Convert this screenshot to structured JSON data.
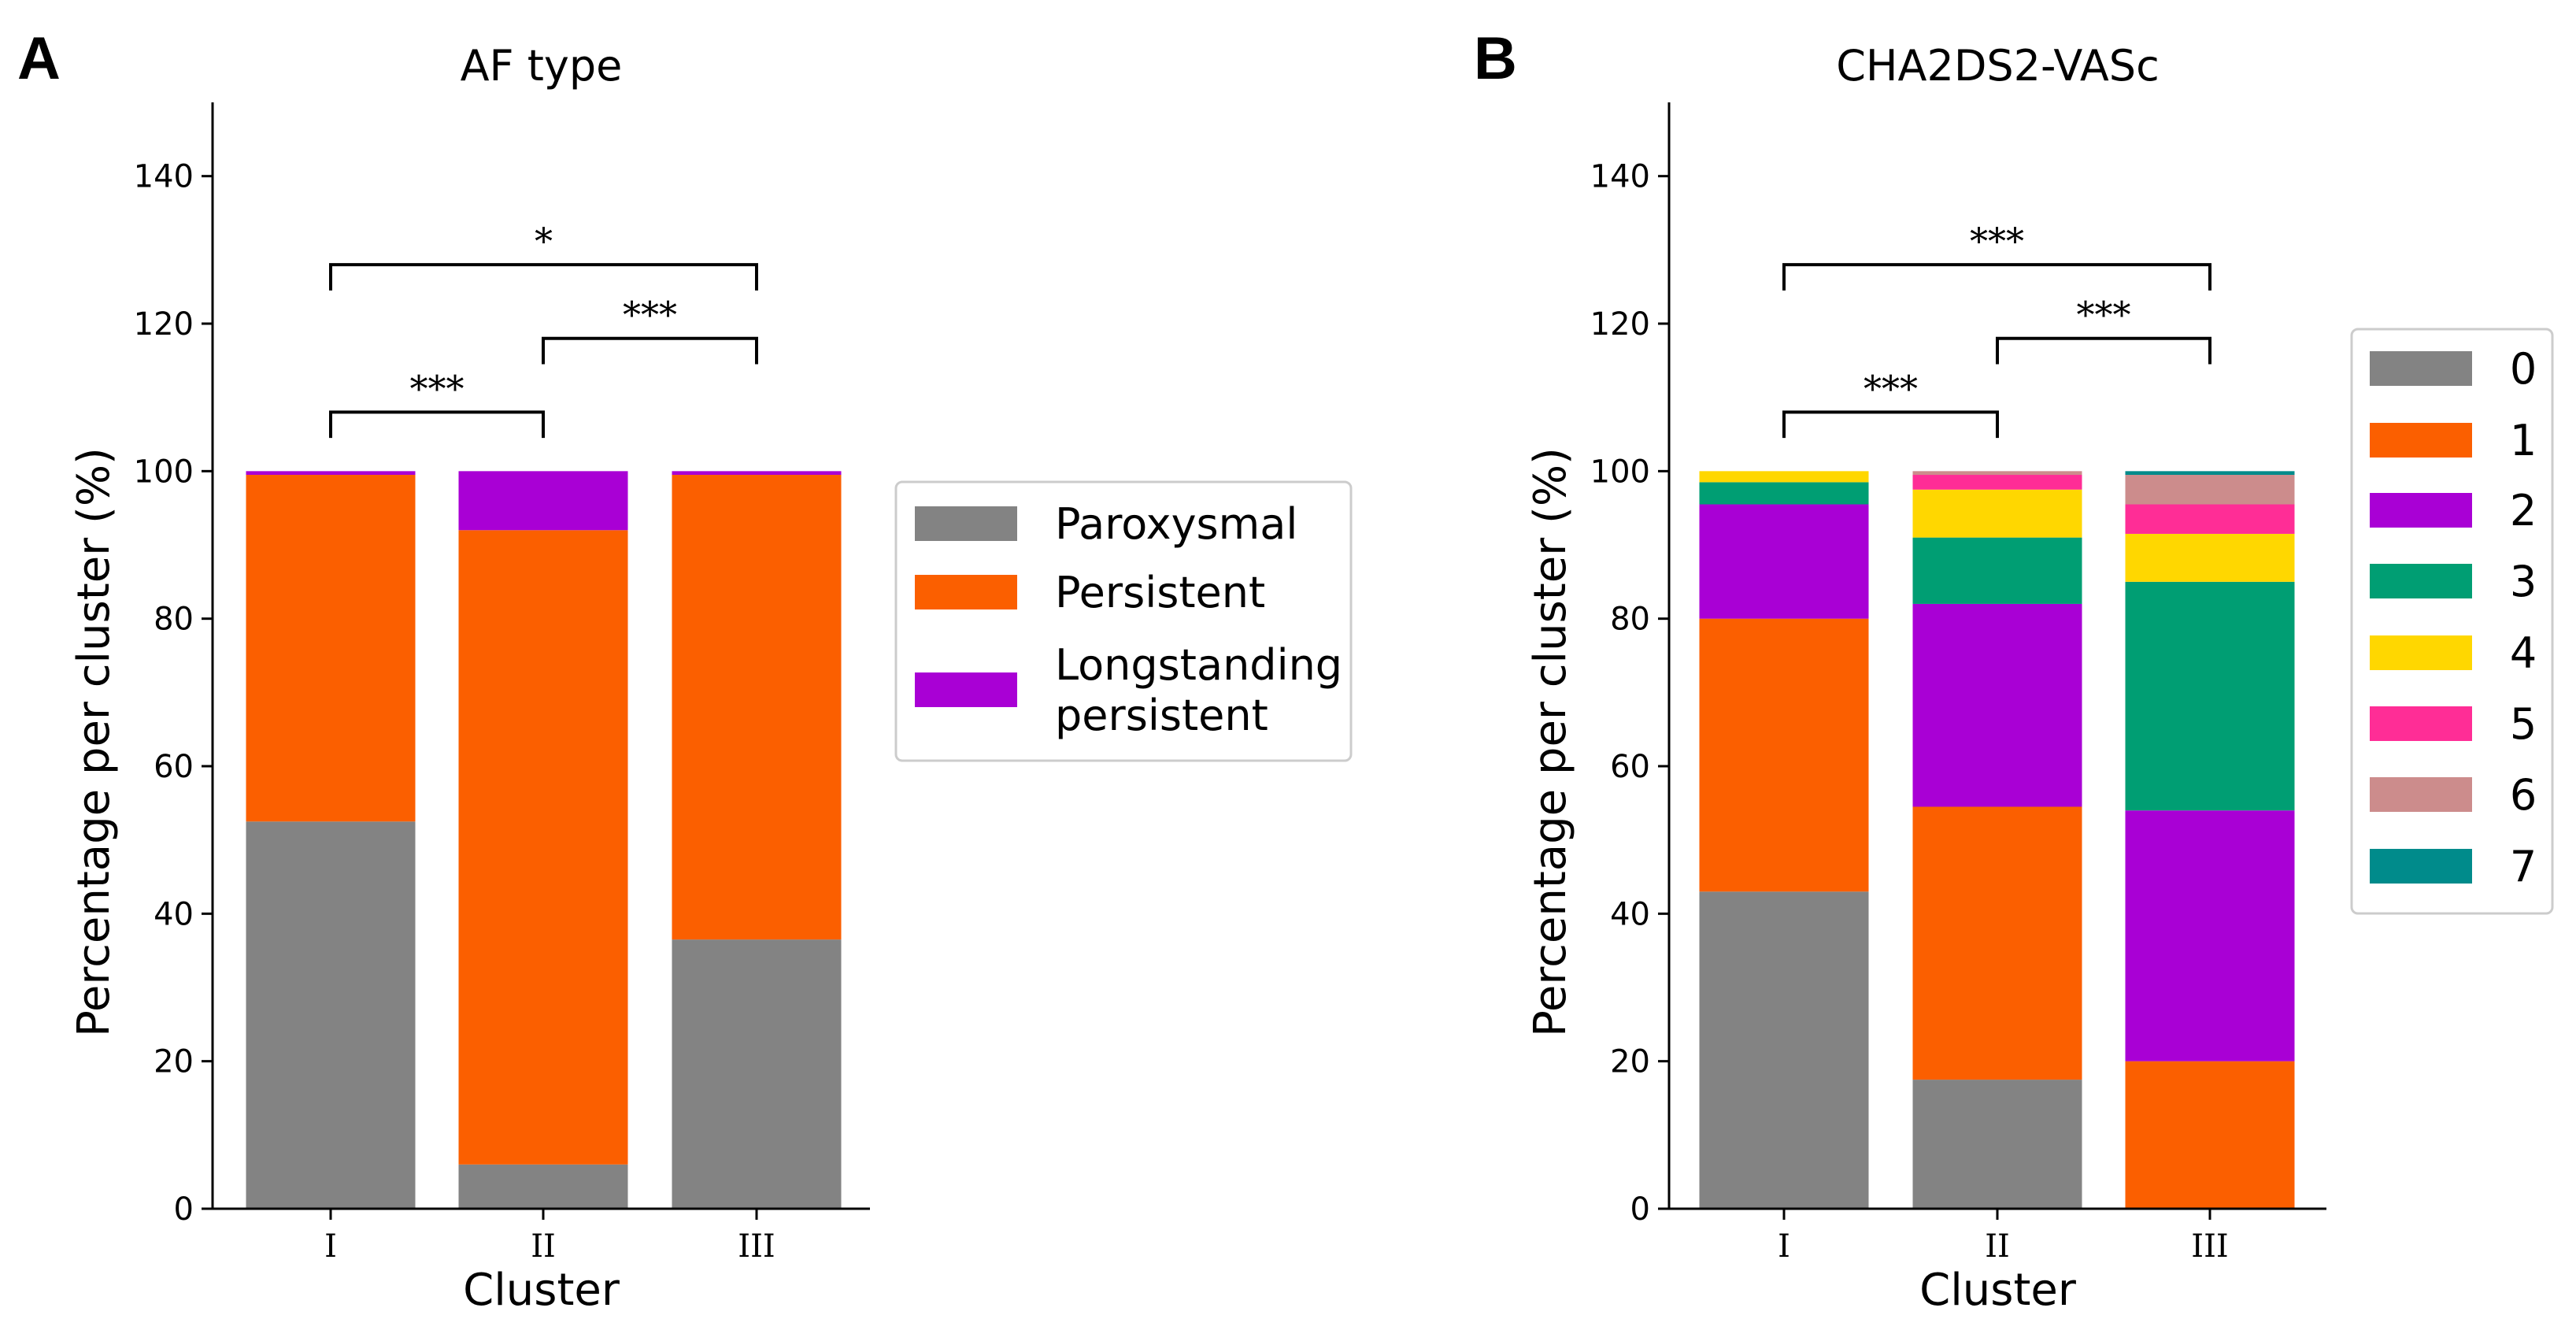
{
  "chart_data": [
    {
      "panel": "A",
      "type": "bar",
      "stacked": true,
      "title": "AF type",
      "xlabel": "Cluster",
      "ylabel": "Percentage per cluster (%)",
      "ylim": [
        0,
        150
      ],
      "yticks": [
        0,
        20,
        40,
        60,
        80,
        100,
        120,
        140
      ],
      "categories": [
        "I",
        "II",
        "III"
      ],
      "series": [
        {
          "name": "Paroxysmal",
          "color": "#838383",
          "values": [
            52.5,
            6,
            36.5
          ]
        },
        {
          "name": "Persistent",
          "color": "#fb5f00",
          "values": [
            47,
            86,
            63
          ]
        },
        {
          "name": "Longstanding persistent",
          "color": "#a900d5",
          "values": [
            0.5,
            8,
            0.5
          ]
        }
      ],
      "legend": {
        "position": "right",
        "labels": [
          "Paroxysmal",
          "Persistent",
          "Longstanding persistent"
        ]
      },
      "significance": [
        {
          "from": 0,
          "to": 1,
          "y": 108,
          "label": "***"
        },
        {
          "from": 1,
          "to": 2,
          "y": 118,
          "label": "***"
        },
        {
          "from": 0,
          "to": 2,
          "y": 128,
          "label": "*"
        }
      ]
    },
    {
      "panel": "B",
      "type": "bar",
      "stacked": true,
      "title": "CHA2DS2-VASc",
      "xlabel": "Cluster",
      "ylabel": "Percentage per cluster (%)",
      "ylim": [
        0,
        150
      ],
      "yticks": [
        0,
        20,
        40,
        60,
        80,
        100,
        120,
        140
      ],
      "categories": [
        "I",
        "II",
        "III"
      ],
      "series": [
        {
          "name": "0",
          "color": "#838383",
          "values": [
            43,
            17.5,
            0
          ]
        },
        {
          "name": "1",
          "color": "#fb5f00",
          "values": [
            37,
            37,
            20
          ]
        },
        {
          "name": "2",
          "color": "#a900d5",
          "values": [
            15.5,
            27.5,
            34
          ]
        },
        {
          "name": "3",
          "color": "#009e73",
          "values": [
            3,
            9,
            31
          ]
        },
        {
          "name": "4",
          "color": "#ffd700",
          "values": [
            1.5,
            6.5,
            6.5
          ]
        },
        {
          "name": "5",
          "color": "#ff2d96",
          "values": [
            0,
            2,
            4
          ]
        },
        {
          "name": "6",
          "color": "#cc8c8c",
          "values": [
            0,
            0.5,
            4
          ]
        },
        {
          "name": "7",
          "color": "#008b8b",
          "values": [
            0,
            0,
            0.5
          ]
        }
      ],
      "legend": {
        "position": "right",
        "labels": [
          "0",
          "1",
          "2",
          "3",
          "4",
          "5",
          "6",
          "7"
        ]
      },
      "significance": [
        {
          "from": 0,
          "to": 1,
          "y": 108,
          "label": "***"
        },
        {
          "from": 1,
          "to": 2,
          "y": 118,
          "label": "***"
        },
        {
          "from": 0,
          "to": 2,
          "y": 128,
          "label": "***"
        }
      ]
    }
  ]
}
